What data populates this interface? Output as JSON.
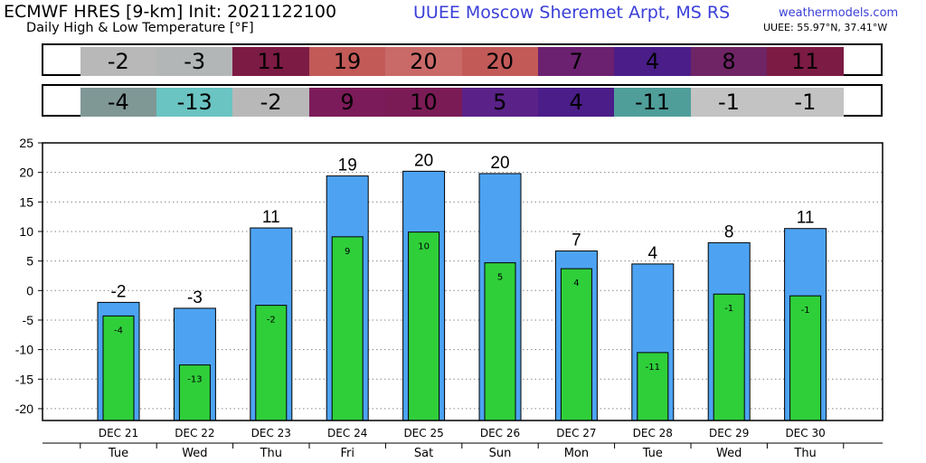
{
  "header": {
    "title": "ECMWF HRES [9-km] Init: 2021122100",
    "subtitle": "Daily High & Low Temperature [°F]",
    "station": "UUEE Moscow Sheremet Arpt, MS RS",
    "brand": "weathermodels.com",
    "coords": "UUEE: 55.97°N, 37.41°W"
  },
  "high_row": {
    "values": [
      "-2",
      "-3",
      "11",
      "19",
      "20",
      "20",
      "7",
      "4",
      "8",
      "11"
    ],
    "colors": [
      "#b8b8b8",
      "#b2b6b6",
      "#7c1b44",
      "#c25a58",
      "#c96a68",
      "#c25a58",
      "#6b2070",
      "#4a1d88",
      "#6f2466",
      "#7c1b44"
    ]
  },
  "low_row": {
    "values": [
      "-4",
      "-13",
      "-2",
      "9",
      "10",
      "5",
      "4",
      "-11",
      "-1",
      "-1"
    ],
    "colors": [
      "#7f9896",
      "#6ac4c2",
      "#b8b8b8",
      "#7c1b5a",
      "#7a1b56",
      "#5a2288",
      "#4a1d88",
      "#4f9e9a",
      "#c3c3c3",
      "#c3c3c3"
    ]
  },
  "chart_data": {
    "type": "bar",
    "categories": [
      "DEC 21",
      "DEC 22",
      "DEC 23",
      "DEC 24",
      "DEC 25",
      "DEC 26",
      "DEC 27",
      "DEC 28",
      "DEC 29",
      "DEC 30"
    ],
    "weekdays": [
      "Tue",
      "Wed",
      "Thu",
      "Fri",
      "Sat",
      "Sun",
      "Mon",
      "Tue",
      "Wed",
      "Thu"
    ],
    "series": [
      {
        "values": [
          -2,
          -3,
          10.6,
          19.4,
          20.2,
          19.8,
          6.7,
          4.5,
          8.1,
          10.5
        ],
        "labels": [
          "-2",
          "-3",
          "11",
          "19",
          "20",
          "20",
          "7",
          "4",
          "8",
          "11"
        ],
        "color": "#4da3f2"
      },
      {
        "values": [
          -4.3,
          -12.6,
          -2.5,
          9.1,
          9.9,
          4.7,
          3.7,
          -10.5,
          -0.6,
          -0.9
        ],
        "labels": [
          "-4",
          "-13",
          "-2",
          "9",
          "10",
          "5",
          "4",
          "-11",
          "-1",
          "-1"
        ],
        "color": "#2fcf3a"
      }
    ],
    "ylim": [
      -22,
      25
    ],
    "yticks": [
      25,
      20,
      15,
      10,
      5,
      0,
      -5,
      -10,
      -15,
      -20
    ],
    "grid": true
  }
}
